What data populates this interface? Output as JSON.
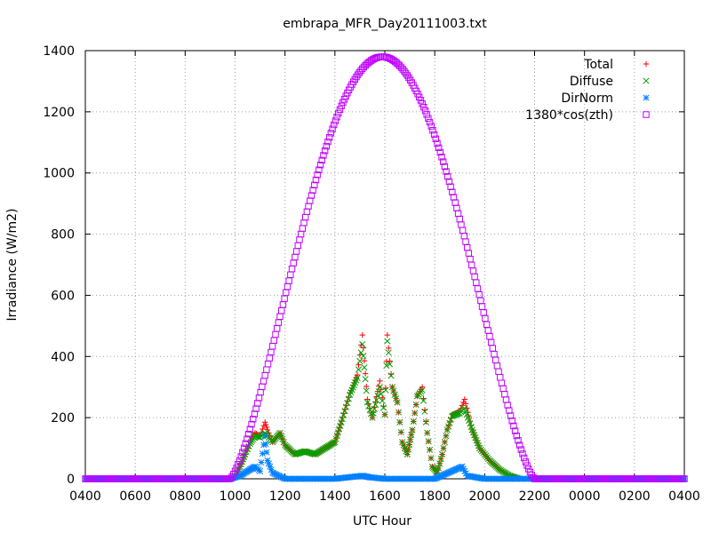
{
  "chart_data": {
    "type": "scatter",
    "title": "embrapa_MFR_Day20111003.txt",
    "xlabel": "UTC Hour",
    "ylabel": "Irradiance (W/m2)",
    "xlim": [
      4,
      28
    ],
    "ylim": [
      0,
      1400
    ],
    "x_ticks": [
      {
        "value": 4,
        "label": "0400"
      },
      {
        "value": 6,
        "label": "0600"
      },
      {
        "value": 8,
        "label": "0800"
      },
      {
        "value": 10,
        "label": "1000"
      },
      {
        "value": 12,
        "label": "1200"
      },
      {
        "value": 14,
        "label": "1400"
      },
      {
        "value": 16,
        "label": "1600"
      },
      {
        "value": 18,
        "label": "1800"
      },
      {
        "value": 20,
        "label": "2000"
      },
      {
        "value": 22,
        "label": "2200"
      },
      {
        "value": 24,
        "label": "0000"
      },
      {
        "value": 26,
        "label": "0200"
      },
      {
        "value": 28,
        "label": "0400"
      }
    ],
    "y_ticks": [
      0,
      200,
      400,
      600,
      800,
      1000,
      1200,
      1400
    ],
    "grid": true,
    "legend_position": "top-right",
    "series": [
      {
        "name": "Total",
        "color": "#ff0000",
        "marker": "plus",
        "points": [
          [
            9.8,
            0
          ],
          [
            10.0,
            5
          ],
          [
            10.2,
            40
          ],
          [
            10.4,
            80
          ],
          [
            10.6,
            120
          ],
          [
            10.8,
            150
          ],
          [
            11.0,
            140
          ],
          [
            11.2,
            185
          ],
          [
            11.3,
            160
          ],
          [
            11.5,
            120
          ],
          [
            11.8,
            150
          ],
          [
            12.0,
            110
          ],
          [
            12.4,
            80
          ],
          [
            12.8,
            90
          ],
          [
            13.2,
            80
          ],
          [
            13.6,
            100
          ],
          [
            14.0,
            120
          ],
          [
            14.3,
            200
          ],
          [
            14.6,
            280
          ],
          [
            14.9,
            340
          ],
          [
            15.1,
            470
          ],
          [
            15.3,
            260
          ],
          [
            15.5,
            200
          ],
          [
            15.8,
            320
          ],
          [
            16.0,
            210
          ],
          [
            16.1,
            470
          ],
          [
            16.3,
            300
          ],
          [
            16.5,
            250
          ],
          [
            16.7,
            120
          ],
          [
            16.9,
            80
          ],
          [
            17.1,
            160
          ],
          [
            17.3,
            270
          ],
          [
            17.5,
            300
          ],
          [
            17.7,
            150
          ],
          [
            17.9,
            40
          ],
          [
            18.1,
            20
          ],
          [
            18.3,
            80
          ],
          [
            18.5,
            160
          ],
          [
            18.7,
            210
          ],
          [
            19.0,
            220
          ],
          [
            19.2,
            260
          ],
          [
            19.5,
            160
          ],
          [
            19.8,
            100
          ],
          [
            20.2,
            60
          ],
          [
            20.6,
            30
          ],
          [
            21.0,
            10
          ],
          [
            21.4,
            0
          ]
        ]
      },
      {
        "name": "Diffuse",
        "color": "#00a000",
        "marker": "cross",
        "points": [
          [
            9.8,
            0
          ],
          [
            10.0,
            5
          ],
          [
            10.2,
            40
          ],
          [
            10.4,
            80
          ],
          [
            10.6,
            115
          ],
          [
            10.8,
            140
          ],
          [
            11.0,
            135
          ],
          [
            11.2,
            150
          ],
          [
            11.3,
            140
          ],
          [
            11.5,
            120
          ],
          [
            11.8,
            150
          ],
          [
            12.0,
            110
          ],
          [
            12.4,
            80
          ],
          [
            12.8,
            90
          ],
          [
            13.2,
            80
          ],
          [
            13.6,
            100
          ],
          [
            14.0,
            120
          ],
          [
            14.3,
            195
          ],
          [
            14.6,
            275
          ],
          [
            14.9,
            330
          ],
          [
            15.1,
            440
          ],
          [
            15.3,
            250
          ],
          [
            15.5,
            200
          ],
          [
            15.8,
            300
          ],
          [
            16.0,
            210
          ],
          [
            16.1,
            450
          ],
          [
            16.3,
            300
          ],
          [
            16.5,
            250
          ],
          [
            16.7,
            120
          ],
          [
            16.9,
            80
          ],
          [
            17.1,
            160
          ],
          [
            17.3,
            270
          ],
          [
            17.5,
            290
          ],
          [
            17.7,
            150
          ],
          [
            17.9,
            40
          ],
          [
            18.1,
            20
          ],
          [
            18.3,
            80
          ],
          [
            18.5,
            160
          ],
          [
            18.7,
            205
          ],
          [
            19.0,
            215
          ],
          [
            19.2,
            230
          ],
          [
            19.5,
            160
          ],
          [
            19.8,
            100
          ],
          [
            20.2,
            60
          ],
          [
            20.6,
            30
          ],
          [
            21.0,
            10
          ],
          [
            21.4,
            0
          ]
        ]
      },
      {
        "name": "DirNorm",
        "color": "#0080ff",
        "marker": "star",
        "points": [
          [
            4.0,
            0
          ],
          [
            6.0,
            0
          ],
          [
            8.0,
            0
          ],
          [
            9.8,
            0
          ],
          [
            10.2,
            10
          ],
          [
            10.6,
            30
          ],
          [
            10.8,
            40
          ],
          [
            11.0,
            25
          ],
          [
            11.2,
            140
          ],
          [
            11.3,
            60
          ],
          [
            11.5,
            20
          ],
          [
            12.0,
            0
          ],
          [
            14.0,
            0
          ],
          [
            15.1,
            10
          ],
          [
            15.4,
            5
          ],
          [
            16.0,
            0
          ],
          [
            18.0,
            0
          ],
          [
            19.1,
            40
          ],
          [
            19.3,
            10
          ],
          [
            20.0,
            0
          ],
          [
            22.0,
            0
          ],
          [
            24.0,
            0
          ],
          [
            26.0,
            0
          ],
          [
            28.0,
            0
          ]
        ]
      },
      {
        "name": "1380*cos(zth)",
        "color": "#c000ff",
        "marker": "square",
        "peak_value": 1380,
        "peak_x": 15.9,
        "nonzero_range": [
          9.8,
          22.0
        ],
        "points": [
          [
            4.0,
            0
          ],
          [
            9.8,
            0
          ],
          [
            10.5,
            240
          ],
          [
            11.5,
            560
          ],
          [
            12.5,
            870
          ],
          [
            13.5,
            1120
          ],
          [
            14.5,
            1300
          ],
          [
            15.9,
            1380
          ],
          [
            17.0,
            1320
          ],
          [
            18.0,
            1170
          ],
          [
            19.0,
            940
          ],
          [
            20.0,
            650
          ],
          [
            21.0,
            340
          ],
          [
            22.0,
            0
          ],
          [
            28.0,
            0
          ]
        ]
      }
    ]
  }
}
